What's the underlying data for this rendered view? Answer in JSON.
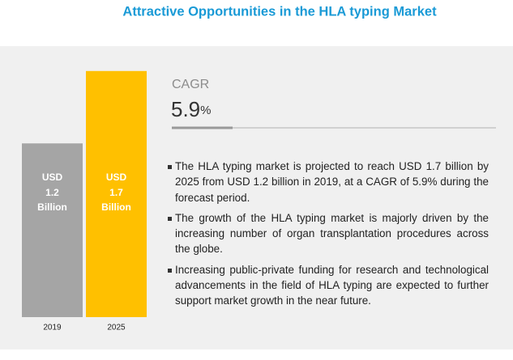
{
  "chart_data": {
    "type": "bar",
    "title": "Attractive Opportunities in the HLA typing Market",
    "categories": [
      "2019",
      "2025"
    ],
    "values": [
      1.2,
      1.7
    ],
    "colors": [
      "#a5a5a5",
      "#ffc000"
    ],
    "value_prefix": "USD",
    "value_suffix": "Billion",
    "ylim": [
      0,
      1.9
    ]
  },
  "cagr": {
    "label": "CAGR",
    "value": 5.9,
    "unit": "%"
  },
  "bullets": [
    "The HLA typing market is projected to reach USD 1.7 billion by 2025 from USD 1.2 billion in 2019, at a CAGR of 5.9% during the forecast period.",
    "The growth of the HLA typing market is majorly driven by the increasing number of organ transplantation procedures across the globe.",
    "Increasing public-private funding for research and technological advancements in the field of HLA typing are expected to further support market growth in the near future."
  ]
}
